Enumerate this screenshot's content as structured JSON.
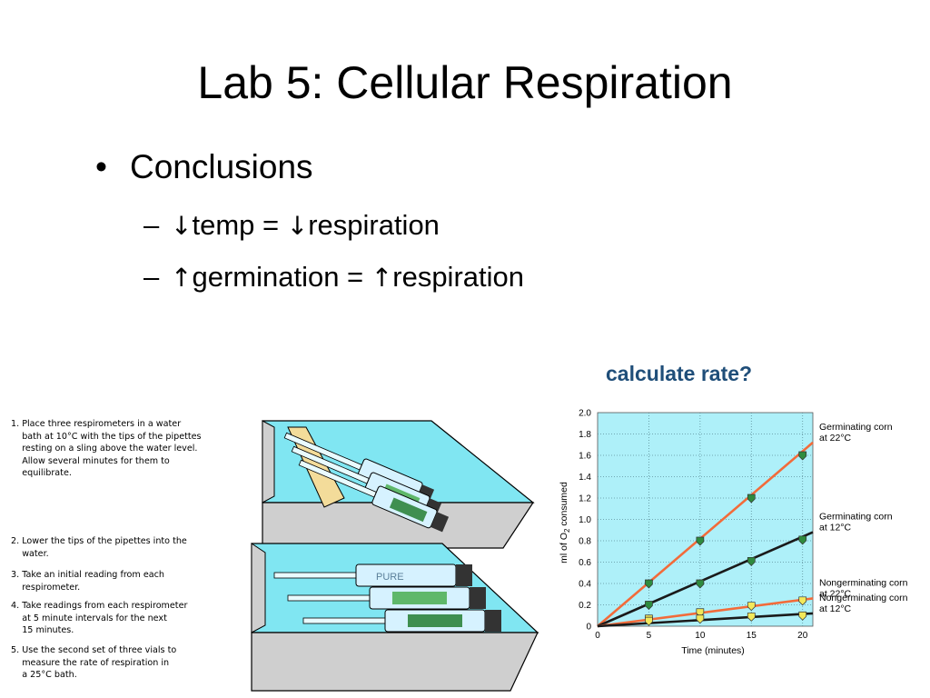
{
  "slide": {
    "title": "Lab 5: Cellular Respiration",
    "bullet": "Conclusions",
    "sub1_mid": "temp = ",
    "sub1_end": "respiration",
    "sub2_mid": "germination = ",
    "sub2_end": "respiration",
    "dash": "–",
    "bullet_char": "•",
    "down_arrow": "↓",
    "up_arrow": "↑",
    "calc_label": "calculate rate?"
  },
  "procedure": {
    "step1": "1. Place three respirometers in a water\n    bath at 10°C with the tips of the pipettes\n    resting on a sling above the water level.\n    Allow several minutes for them to\n    equilibrate.",
    "step2": "2. Lower the tips of the pipettes into the\n    water.",
    "step3": "3. Take an initial reading from each\n    respirometer.",
    "step4": "4. Take readings from each respirometer\n    at 5 minute intervals for the next\n    15 minutes.",
    "step5": "5. Use the second set of three vials to\n    measure the rate of respiration in\n    a 25°C bath.",
    "vial_label": "PURE"
  },
  "colors": {
    "water": "#80e6f2",
    "tray": "#cfcfcf",
    "plot_bg": "#aef0f9",
    "orange": "#f26b3a",
    "black": "#1a1a1a",
    "green_marker": "#2e8b3e",
    "yellow_marker": "#f2e85a"
  },
  "chart_data": {
    "type": "line",
    "xlabel": "Time (minutes)",
    "ylabel": "ml of O2 consumed",
    "ylabel_main": "ml of O",
    "ylabel_sub": "2",
    "ylabel_tail": " consumed",
    "xlim": [
      0,
      21
    ],
    "ylim": [
      0,
      2.0
    ],
    "xticks": [
      "0",
      "5",
      "10",
      "15",
      "20"
    ],
    "yticks": [
      "0",
      "0.2",
      "0.4",
      "0.6",
      "0.8",
      "1.0",
      "1.2",
      "1.4",
      "1.6",
      "1.8",
      "2.0"
    ],
    "grid": true,
    "series": [
      {
        "name": "Germinating corn at 22°C",
        "name_l1": "Germinating corn",
        "name_l2": "at 22°C",
        "color": "#f26b3a",
        "marker": "#2e8b3e",
        "x": [
          0,
          5,
          10,
          15,
          20
        ],
        "y": [
          0,
          0.4,
          0.8,
          1.2,
          1.6
        ],
        "line_end": [
          21,
          1.72
        ]
      },
      {
        "name": "Germinating corn at 12°C",
        "name_l1": "Germinating corn",
        "name_l2": "at 12°C",
        "color": "#1a1a1a",
        "marker": "#2e8b3e",
        "x": [
          0,
          5,
          10,
          15,
          20
        ],
        "y": [
          0,
          0.2,
          0.4,
          0.61,
          0.81
        ],
        "line_end": [
          21,
          0.88
        ]
      },
      {
        "name": "Nongerminating corn at 22°C",
        "name_l1": "Nongerminating corn",
        "name_l2": "at 22°C",
        "color": "#f26b3a",
        "marker": "#f2e85a",
        "x": [
          0,
          5,
          10,
          15,
          20
        ],
        "y": [
          0,
          0.07,
          0.13,
          0.19,
          0.24
        ],
        "line_end": [
          21,
          0.26
        ]
      },
      {
        "name": "Nongerminating corn at 12°C",
        "name_l1": "Nongerminating corn",
        "name_l2": "at 12°C",
        "color": "#1a1a1a",
        "marker": "#f2e85a",
        "x": [
          0,
          5,
          10,
          15,
          20
        ],
        "y": [
          0,
          0.05,
          0.07,
          0.09,
          0.1
        ],
        "line_end": [
          21,
          0.12
        ]
      }
    ]
  }
}
